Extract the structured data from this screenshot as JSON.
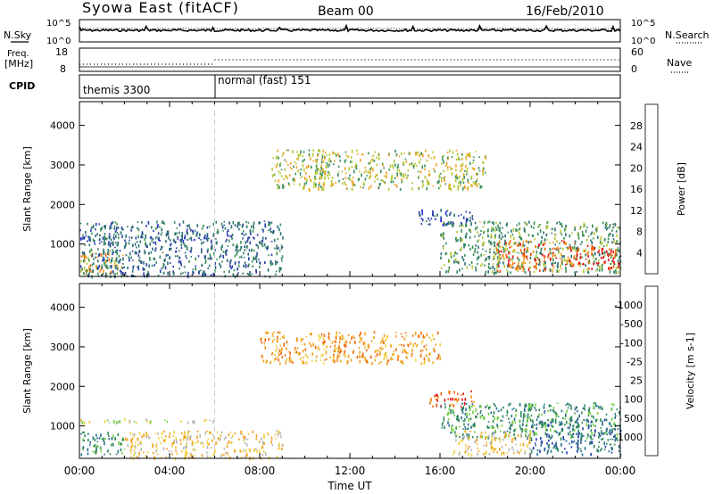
{
  "header": {
    "title": "Syowa East (fitACF)",
    "beam": "Beam 00",
    "date": "16/Feb/2010"
  },
  "noise_panel": {
    "left_label": "N.Sky",
    "right_label": "N.Search",
    "left_ticks": [
      "10^5",
      "10^0"
    ],
    "right_ticks": [
      "10^5",
      "10^0"
    ]
  },
  "freq_panel": {
    "left_label_line1": "Freq.",
    "left_label_line2": "[MHz]",
    "right_label": "Nave",
    "left_ticks": [
      "18",
      "8"
    ],
    "right_ticks": [
      "60",
      "0"
    ]
  },
  "cpid_panel": {
    "label": "CPID",
    "segments": [
      {
        "start_hour": 0,
        "end_hour": 6,
        "label": "themis 3300"
      },
      {
        "start_hour": 6,
        "end_hour": 24,
        "label": "normal (fast) 151"
      }
    ]
  },
  "x_axis": {
    "label": "Time UT",
    "ticks": [
      "00:00",
      "04:00",
      "08:00",
      "12:00",
      "16:00",
      "20:00",
      "00:00"
    ],
    "tick_hours": [
      0,
      4,
      8,
      12,
      16,
      20,
      24
    ],
    "range_hours": [
      0,
      24
    ]
  },
  "chart_data": [
    {
      "type": "heatmap",
      "name": "power",
      "ylabel": "Slant Range [km]",
      "yticks": [
        1000,
        2000,
        3000,
        4000
      ],
      "ylim": [
        180,
        4600
      ],
      "colorbar": {
        "label": "Power [dB]",
        "ticks": [
          "4",
          "8",
          "12",
          "16",
          "20",
          "24",
          "28"
        ],
        "colors": [
          "#1414e6",
          "#2a3fa8",
          "#2a6f6f",
          "#3a8f5a",
          "#b4c832",
          "#f0a020",
          "#f06a10",
          "#e61414"
        ]
      },
      "regions": [
        {
          "t0": 0.0,
          "t1": 2.0,
          "r0": 250,
          "r1": 800,
          "level": 5
        },
        {
          "t0": 0.0,
          "t1": 6.0,
          "r0": 1100,
          "r1": 1200,
          "level": 1
        },
        {
          "t0": 0.0,
          "t1": 9.0,
          "r0": 200,
          "r1": 1600,
          "level": 2
        },
        {
          "t0": 8.5,
          "t1": 18.0,
          "r0": 2400,
          "r1": 3400,
          "level": 4
        },
        {
          "t0": 15.0,
          "t1": 17.5,
          "r0": 1500,
          "r1": 1900,
          "level": 1
        },
        {
          "t0": 16.0,
          "t1": 24.0,
          "r0": 300,
          "r1": 1600,
          "level": 3
        },
        {
          "t0": 18.5,
          "t1": 22.0,
          "r0": 350,
          "r1": 1100,
          "level": 6
        },
        {
          "t0": 22.0,
          "t1": 24.0,
          "r0": 400,
          "r1": 1000,
          "level": 7
        }
      ]
    },
    {
      "type": "heatmap",
      "name": "velocity",
      "ylabel": "Slant Range [km]",
      "yticks": [
        1000,
        2000,
        3000,
        4000
      ],
      "ylim": [
        180,
        4600
      ],
      "colorbar": {
        "label": "Velocity [m s-1]",
        "ticks": [
          "1000",
          "500",
          "100",
          "25",
          "-25",
          "-100",
          "-500",
          "-1000"
        ],
        "colors": [
          "#1e3caa",
          "#2a6f8a",
          "#2f8a5a",
          "#6fcf3a",
          "#b8b8b8",
          "#f0d040",
          "#f0a020",
          "#f06a10",
          "#e61414"
        ]
      },
      "regions": [
        {
          "t0": 0.0,
          "t1": 2.0,
          "r0": 300,
          "r1": 900,
          "level": 2
        },
        {
          "t0": 0.0,
          "t1": 6.0,
          "r0": 1100,
          "r1": 1200,
          "level": 4
        },
        {
          "t0": 2.0,
          "t1": 9.0,
          "r0": 200,
          "r1": 900,
          "level": 5
        },
        {
          "t0": 8.0,
          "t1": 16.0,
          "r0": 2600,
          "r1": 3400,
          "level": 6
        },
        {
          "t0": 15.5,
          "t1": 17.5,
          "r0": 1500,
          "r1": 1900,
          "level": 7
        },
        {
          "t0": 16.0,
          "t1": 24.0,
          "r0": 700,
          "r1": 1600,
          "level": 2
        },
        {
          "t0": 16.5,
          "t1": 20.0,
          "r0": 300,
          "r1": 900,
          "level": 5
        },
        {
          "t0": 20.0,
          "t1": 24.0,
          "r0": 300,
          "r1": 1200,
          "level": 1
        }
      ]
    }
  ]
}
